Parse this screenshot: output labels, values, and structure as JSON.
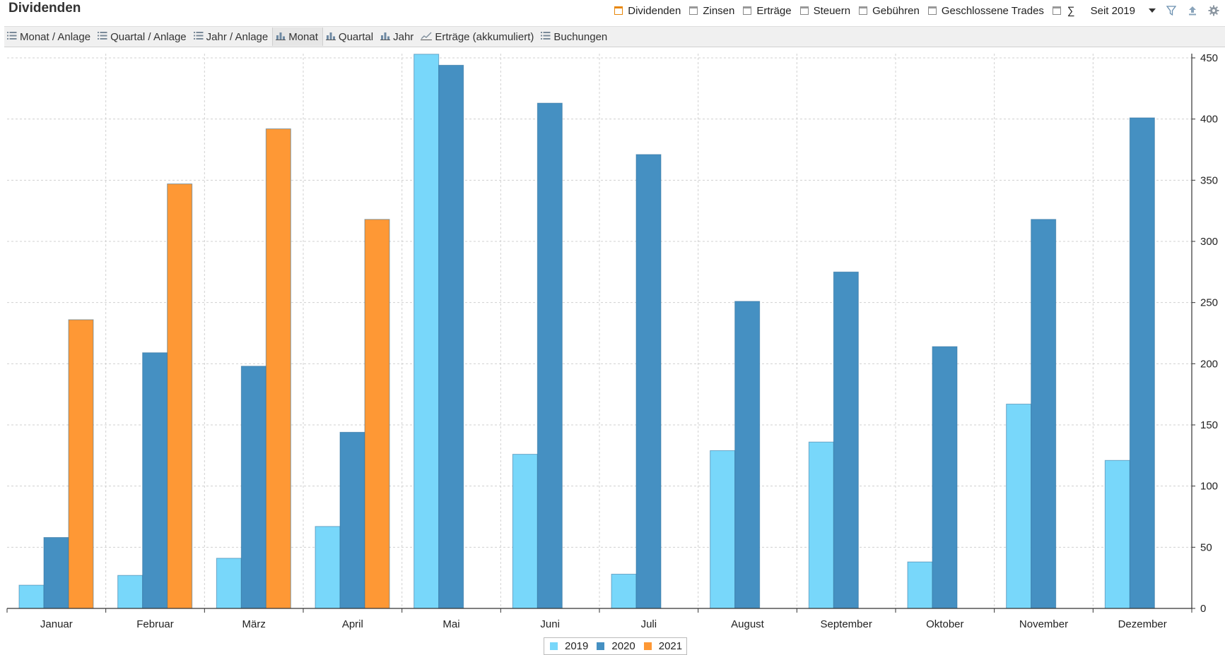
{
  "header": {
    "title": "Dividenden",
    "filters": [
      {
        "label": "Dividenden",
        "checked": true
      },
      {
        "label": "Zinsen",
        "checked": false
      },
      {
        "label": "Erträge",
        "checked": false
      },
      {
        "label": "Steuern",
        "checked": false
      },
      {
        "label": "Gebühren",
        "checked": false
      },
      {
        "label": "Geschlossene Trades",
        "checked": false
      },
      {
        "label": "∑",
        "checked": false
      }
    ],
    "period": "Seit 2019",
    "icons": [
      "filter-icon",
      "export-icon",
      "settings-icon"
    ]
  },
  "toolbar": {
    "tabs": [
      {
        "label": "Monat / Anlage",
        "icon": "list-icon"
      },
      {
        "label": "Quartal / Anlage",
        "icon": "list-icon"
      },
      {
        "label": "Jahr / Anlage",
        "icon": "list-icon"
      },
      {
        "label": "Monat",
        "icon": "bar-chart-icon",
        "active": true
      },
      {
        "label": "Quartal",
        "icon": "bar-chart-icon"
      },
      {
        "label": "Jahr",
        "icon": "bar-chart-icon"
      },
      {
        "label": "Erträge (akkumuliert)",
        "icon": "line-chart-icon"
      },
      {
        "label": "Buchungen",
        "icon": "list-icon"
      }
    ]
  },
  "colors": {
    "s2019": "#78d7fa",
    "s2020": "#4590c2",
    "s2021": "#fe9835",
    "grid": "#d0d0d0",
    "axis": "#333333"
  },
  "chart_data": {
    "type": "bar",
    "title": "",
    "xlabel": "",
    "ylabel": "",
    "categories": [
      "Januar",
      "Februar",
      "März",
      "April",
      "Mai",
      "Juni",
      "Juli",
      "August",
      "September",
      "Oktober",
      "November",
      "Dezember"
    ],
    "series": [
      {
        "name": "2019",
        "values": [
          19,
          27,
          41,
          67,
          453,
          126,
          28,
          129,
          136,
          38,
          167,
          121
        ]
      },
      {
        "name": "2020",
        "values": [
          58,
          209,
          198,
          144,
          444,
          413,
          371,
          251,
          275,
          214,
          318,
          401
        ]
      },
      {
        "name": "2021",
        "values": [
          236,
          347,
          392,
          318,
          null,
          null,
          null,
          null,
          null,
          null,
          null,
          null
        ]
      }
    ],
    "ylim": [
      0,
      450
    ],
    "yticks": [
      0,
      50,
      100,
      150,
      200,
      250,
      300,
      350,
      400,
      450
    ],
    "y_axis_side": "right",
    "grid": true,
    "legend": "bottom-center"
  }
}
